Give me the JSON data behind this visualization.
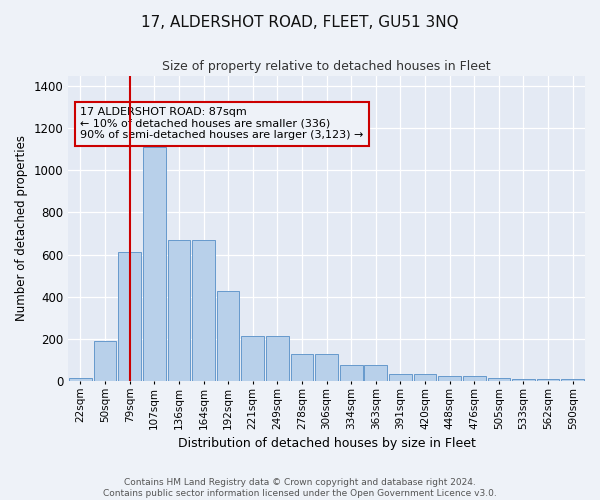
{
  "title": "17, ALDERSHOT ROAD, FLEET, GU51 3NQ",
  "subtitle": "Size of property relative to detached houses in Fleet",
  "xlabel": "Distribution of detached houses by size in Fleet",
  "ylabel": "Number of detached properties",
  "bar_labels": [
    "22sqm",
    "50sqm",
    "79sqm",
    "107sqm",
    "136sqm",
    "164sqm",
    "192sqm",
    "221sqm",
    "249sqm",
    "278sqm",
    "306sqm",
    "334sqm",
    "363sqm",
    "391sqm",
    "420sqm",
    "448sqm",
    "476sqm",
    "505sqm",
    "533sqm",
    "562sqm",
    "590sqm"
  ],
  "bar_values": [
    15,
    190,
    610,
    1110,
    670,
    670,
    425,
    215,
    215,
    130,
    130,
    75,
    75,
    35,
    35,
    25,
    25,
    15,
    10,
    10,
    10
  ],
  "bar_color": "#b8d0ea",
  "bar_edgecolor": "#6699cc",
  "vline_x": 2,
  "vline_color": "#cc0000",
  "annotation_text": "17 ALDERSHOT ROAD: 87sqm\n← 10% of detached houses are smaller (336)\n90% of semi-detached houses are larger (3,123) →",
  "annotation_box_edgecolor": "#cc0000",
  "ylim": [
    0,
    1450
  ],
  "yticks": [
    0,
    200,
    400,
    600,
    800,
    1000,
    1200,
    1400
  ],
  "footer_text": "Contains HM Land Registry data © Crown copyright and database right 2024.\nContains public sector information licensed under the Open Government Licence v3.0.",
  "bg_color": "#eef2f8",
  "plot_bg_color": "#e4eaf4"
}
